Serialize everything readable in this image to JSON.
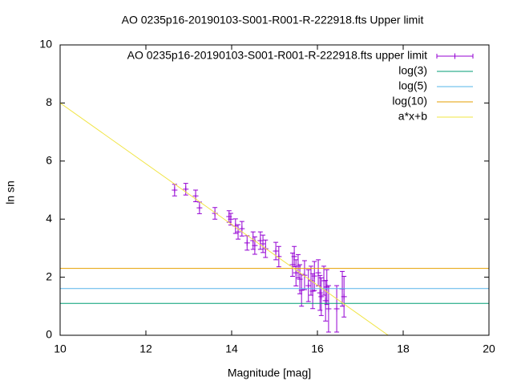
{
  "chart_data": {
    "type": "scatter",
    "title": "AO 0235p16-20190103-S001-R001-R-222918.fts Upper limit",
    "x_label": "Magnitude [mag]",
    "y_label": "ln sn",
    "xlim": [
      10,
      20
    ],
    "ylim": [
      0,
      10
    ],
    "xticks": [
      10,
      12,
      14,
      16,
      18,
      20
    ],
    "yticks": [
      0,
      2,
      4,
      6,
      8,
      10
    ],
    "legend": "top-right",
    "series": [
      {
        "name": "AO 0235p16-20190103-S001-R001-R-222918.fts upper limit",
        "kind": "errorbars",
        "color": "#9400d3",
        "x": [
          12.67,
          12.93,
          13.16,
          13.25,
          13.61,
          13.94,
          13.98,
          14.09,
          14.15,
          14.24,
          14.36,
          14.5,
          14.54,
          14.67,
          14.73,
          14.79,
          15.03,
          15.1,
          15.42,
          15.46,
          15.5,
          15.55,
          15.59,
          15.63,
          15.7,
          15.79,
          15.85,
          15.89,
          15.93,
          16.02,
          16.06,
          16.09,
          16.15,
          16.19,
          16.22,
          16.26,
          16.45,
          16.58,
          16.62
        ],
        "values": [
          5.0,
          5.03,
          4.8,
          4.39,
          4.2,
          4.09,
          4.0,
          3.76,
          3.56,
          3.67,
          3.18,
          3.26,
          3.09,
          3.26,
          3.15,
          2.98,
          2.9,
          2.71,
          2.43,
          2.71,
          2.15,
          2.38,
          1.93,
          1.55,
          2.07,
          1.71,
          1.88,
          1.52,
          2.04,
          2.15,
          1.46,
          1.33,
          1.88,
          1.19,
          1.66,
          0.91,
          0.91,
          1.6,
          1.33
        ],
        "errors": [
          0.2,
          0.2,
          0.2,
          0.2,
          0.2,
          0.2,
          0.2,
          0.25,
          0.25,
          0.25,
          0.25,
          0.3,
          0.3,
          0.3,
          0.3,
          0.3,
          0.3,
          0.35,
          0.4,
          0.35,
          0.45,
          0.4,
          0.5,
          0.55,
          0.5,
          0.55,
          0.5,
          0.6,
          0.5,
          0.45,
          0.6,
          0.65,
          0.5,
          0.7,
          0.6,
          0.8,
          0.8,
          0.6,
          0.7
        ]
      },
      {
        "name": "log(3)",
        "kind": "hline",
        "color": "#009e73",
        "value": 1.0986
      },
      {
        "name": "log(5)",
        "kind": "hline",
        "color": "#56b4e9",
        "value": 1.6094
      },
      {
        "name": "log(10)",
        "kind": "hline",
        "color": "#e69f00",
        "value": 2.3026
      },
      {
        "name": "a*x+b",
        "kind": "line",
        "color": "#f0e442",
        "x": [
          10,
          17.65
        ],
        "values": [
          8,
          0
        ]
      }
    ]
  }
}
